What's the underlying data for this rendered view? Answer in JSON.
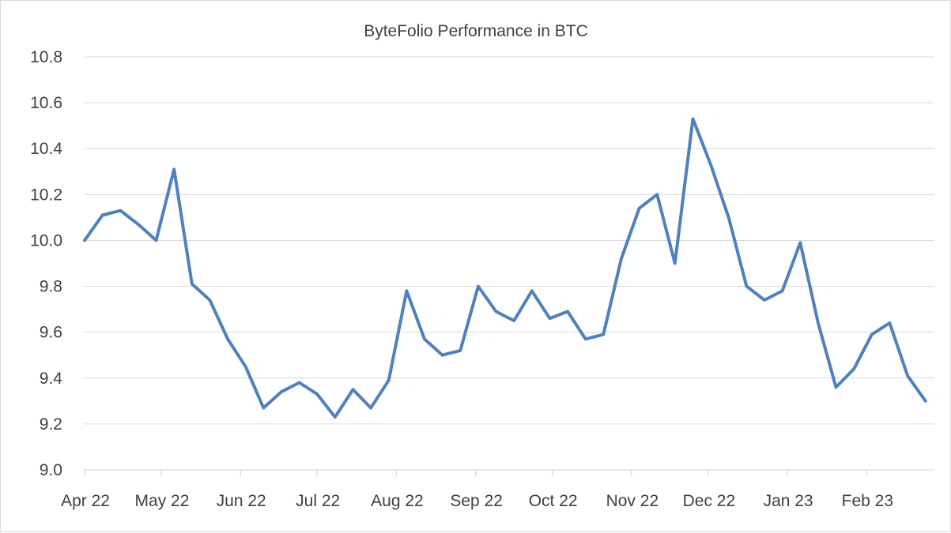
{
  "chart_data": {
    "type": "line",
    "title": "ByteFolio Performance  in BTC",
    "xlabel": "",
    "ylabel": "",
    "ylim": [
      9.0,
      10.8
    ],
    "yticks": [
      "9.0",
      "9.2",
      "9.4",
      "9.6",
      "9.8",
      "10.0",
      "10.2",
      "10.4",
      "10.6",
      "10.8"
    ],
    "grid": true,
    "legend": "none",
    "x_tick_labels": [
      "Apr 22",
      "May 22",
      "Jun 22",
      "Jul 22",
      "Aug 22",
      "Sep 22",
      "Oct 22",
      "Nov 22",
      "Dec 22",
      "Jan 23",
      "Feb 23"
    ],
    "series": [
      {
        "color": "#4f81bd",
        "x": [
          "2022-04-01",
          "2022-04-08",
          "2022-04-15",
          "2022-04-22",
          "2022-04-29",
          "2022-05-06",
          "2022-05-13",
          "2022-05-20",
          "2022-05-27",
          "2022-06-03",
          "2022-06-10",
          "2022-06-17",
          "2022-06-24",
          "2022-07-01",
          "2022-07-08",
          "2022-07-15",
          "2022-07-22",
          "2022-07-29",
          "2022-08-05",
          "2022-08-12",
          "2022-08-19",
          "2022-08-26",
          "2022-09-02",
          "2022-09-09",
          "2022-09-16",
          "2022-09-23",
          "2022-09-30",
          "2022-10-07",
          "2022-10-14",
          "2022-10-21",
          "2022-10-28",
          "2022-11-04",
          "2022-11-11",
          "2022-11-18",
          "2022-11-25",
          "2022-12-02",
          "2022-12-09",
          "2022-12-16",
          "2022-12-23",
          "2022-12-30",
          "2023-01-06",
          "2023-01-13",
          "2023-01-20",
          "2023-01-27",
          "2023-02-03",
          "2023-02-10",
          "2023-02-17",
          "2023-02-24"
        ],
        "values": [
          10.0,
          10.11,
          10.13,
          10.07,
          10.0,
          10.31,
          9.81,
          9.74,
          9.57,
          9.45,
          9.27,
          9.34,
          9.38,
          9.33,
          9.23,
          9.35,
          9.27,
          9.39,
          9.78,
          9.57,
          9.5,
          9.52,
          9.8,
          9.69,
          9.65,
          9.78,
          9.66,
          9.69,
          9.57,
          9.59,
          9.92,
          10.14,
          10.2,
          9.9,
          10.53,
          10.33,
          10.1,
          9.8,
          9.74,
          9.78,
          9.99,
          9.64,
          9.36,
          9.44,
          9.59,
          9.64,
          9.41,
          9.3
        ]
      }
    ]
  }
}
